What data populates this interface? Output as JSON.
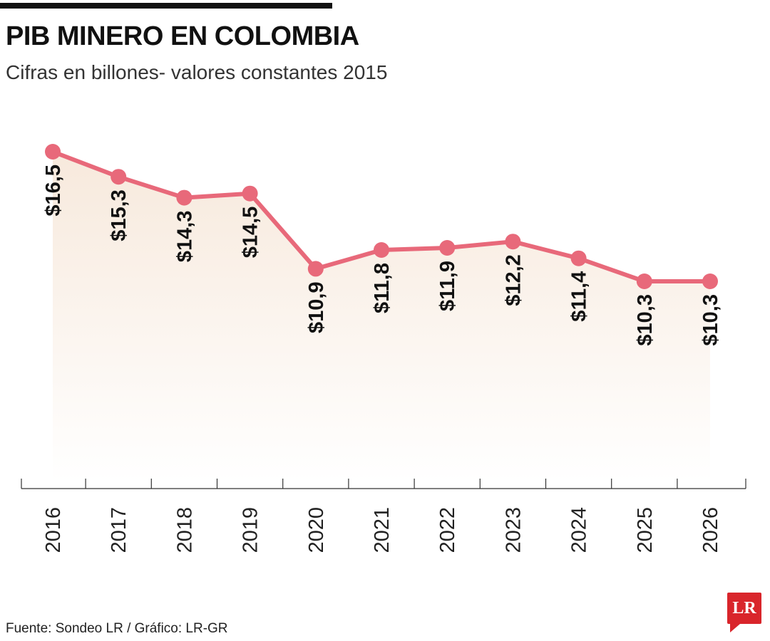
{
  "header": {
    "title": "PIB MINERO EN COLOMBIA",
    "subtitle": "Cifras en billones- valores constantes 2015"
  },
  "footer": {
    "source": "Fuente: Sondeo LR / Gráfico: LR-GR",
    "logo_text": "LR"
  },
  "colors": {
    "line": "#e8697a",
    "fill_top": "#f7e9dc",
    "axis": "#333333"
  },
  "chart_data": {
    "type": "line",
    "title": "PIB MINERO EN COLOMBIA",
    "subtitle": "Cifras en billones- valores constantes 2015",
    "x": [
      "2016",
      "2017",
      "2018",
      "2019",
      "2020",
      "2021",
      "2022",
      "2023",
      "2024",
      "2025",
      "2026"
    ],
    "series": [
      {
        "values": [
          16.5,
          15.3,
          14.3,
          14.5,
          10.9,
          11.8,
          11.9,
          12.2,
          11.4,
          10.3,
          10.3
        ],
        "labels": [
          "$16,5",
          "$15,3",
          "$14,3",
          "$14,5",
          "$10,9",
          "$11,8",
          "$11,9",
          "$12,2",
          "$11,4",
          "$10,3",
          "$10,3"
        ]
      }
    ],
    "ylim": [
      0,
      16.5
    ],
    "grid": false,
    "legend": "none"
  }
}
